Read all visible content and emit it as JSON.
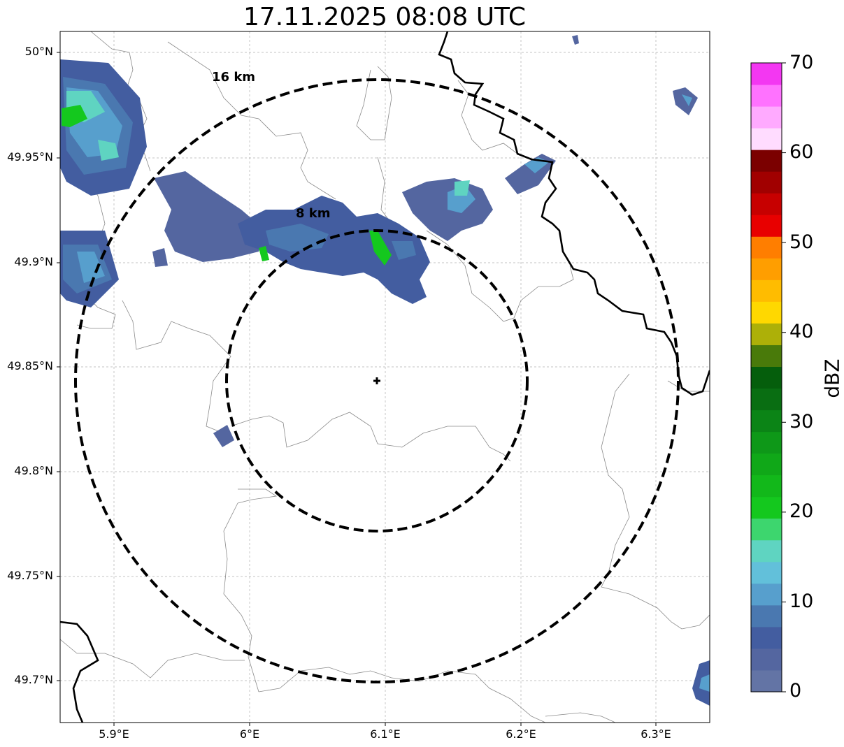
{
  "title": "17.11.2025 08:08 UTC",
  "map": {
    "lat_ticks": [
      "50°N",
      "49.95°N",
      "49.9°N",
      "49.85°N",
      "49.8°N",
      "49.75°N",
      "49.7°N"
    ],
    "lon_ticks": [
      "5.9°E",
      "6°E",
      "6.1°E",
      "6.2°E",
      "6.3°E"
    ],
    "rings": [
      {
        "label": "16 km",
        "radius_km": 16
      },
      {
        "label": "8 km",
        "radius_km": 8
      }
    ],
    "center_marker": "plus-icon"
  },
  "colorbar": {
    "unit": "dBZ",
    "ticks": [
      "0",
      "10",
      "20",
      "30",
      "40",
      "50",
      "60",
      "70"
    ],
    "colors": [
      "#6374a5",
      "#5466a0",
      "#435da0",
      "#4a78b0",
      "#579fcd",
      "#62c0da",
      "#5fd4c1",
      "#3dd66e",
      "#14c81e",
      "#12b81a",
      "#10a818",
      "#0e9818",
      "#0b8416",
      "#096e12",
      "#055e0c",
      "#497a0a",
      "#adb008",
      "#ffd800",
      "#ffbc00",
      "#ff9e00",
      "#ff7e00",
      "#e80000",
      "#c70000",
      "#a10000",
      "#7b0000",
      "#ffdcff",
      "#ffaaff",
      "#ff72ff",
      "#f337f2"
    ]
  }
}
